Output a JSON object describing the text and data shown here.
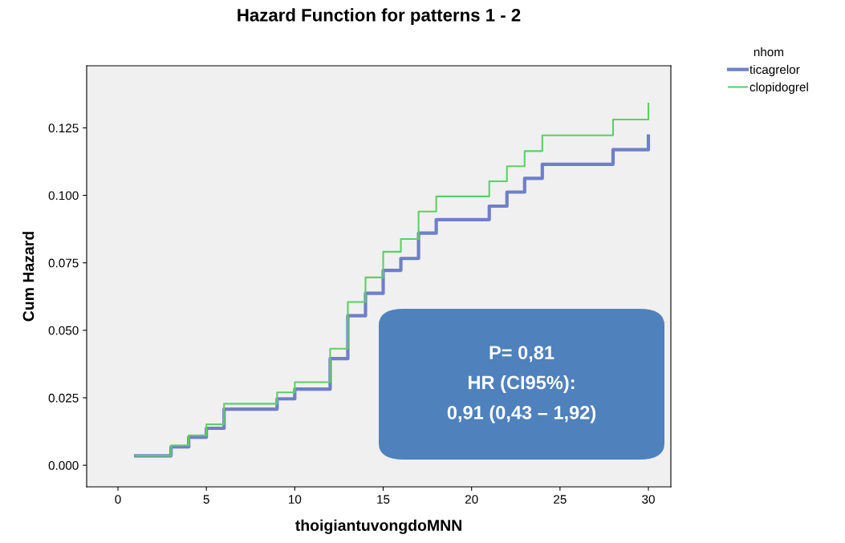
{
  "chart_data": {
    "type": "step",
    "title": "Hazard Function for patterns 1 - 2",
    "xlabel": "thoigiantuvongdoMNN",
    "ylabel": "Cum Hazard",
    "legend_title": "nhom",
    "x": [
      1,
      3,
      4,
      5,
      6,
      9,
      10,
      12,
      13,
      14,
      15,
      16,
      17,
      18,
      21,
      22,
      23,
      24,
      28,
      30
    ],
    "series": [
      {
        "name": "ticagrelor",
        "color": "#6f7fc8",
        "values": [
          0.0035,
          0.0068,
          0.0104,
          0.0137,
          0.0208,
          0.0246,
          0.0282,
          0.0395,
          0.0554,
          0.0637,
          0.0722,
          0.0766,
          0.086,
          0.091,
          0.096,
          0.1012,
          0.1063,
          0.1115,
          0.1169,
          0.122
        ]
      },
      {
        "name": "clopidogrel",
        "color": "#5ccf66",
        "values": [
          0.0035,
          0.0074,
          0.0111,
          0.0152,
          0.0228,
          0.027,
          0.0308,
          0.0432,
          0.0605,
          0.0696,
          0.0791,
          0.0838,
          0.094,
          0.0996,
          0.1052,
          0.1108,
          0.1164,
          0.1222,
          0.1281,
          0.134
        ]
      }
    ],
    "xlim": [
      -1.77,
      31.27
    ],
    "ylim": [
      -0.008,
      0.148
    ],
    "xticks": [
      0,
      5,
      10,
      15,
      20,
      25,
      30
    ],
    "yticks": [
      {
        "value": 0,
        "label": "0.000"
      },
      {
        "value": 0.025,
        "label": "0.025"
      },
      {
        "value": 0.05,
        "label": "0.050"
      },
      {
        "value": 0.075,
        "label": "0.075"
      },
      {
        "value": 0.1,
        "label": "0.100"
      },
      {
        "value": 0.125,
        "label": "0.125"
      }
    ],
    "annotations": [
      "P= 0,81\nHR (CI95%):\n0,91 (0,43 – 1,92)"
    ],
    "legend": "top right",
    "grid": false
  }
}
